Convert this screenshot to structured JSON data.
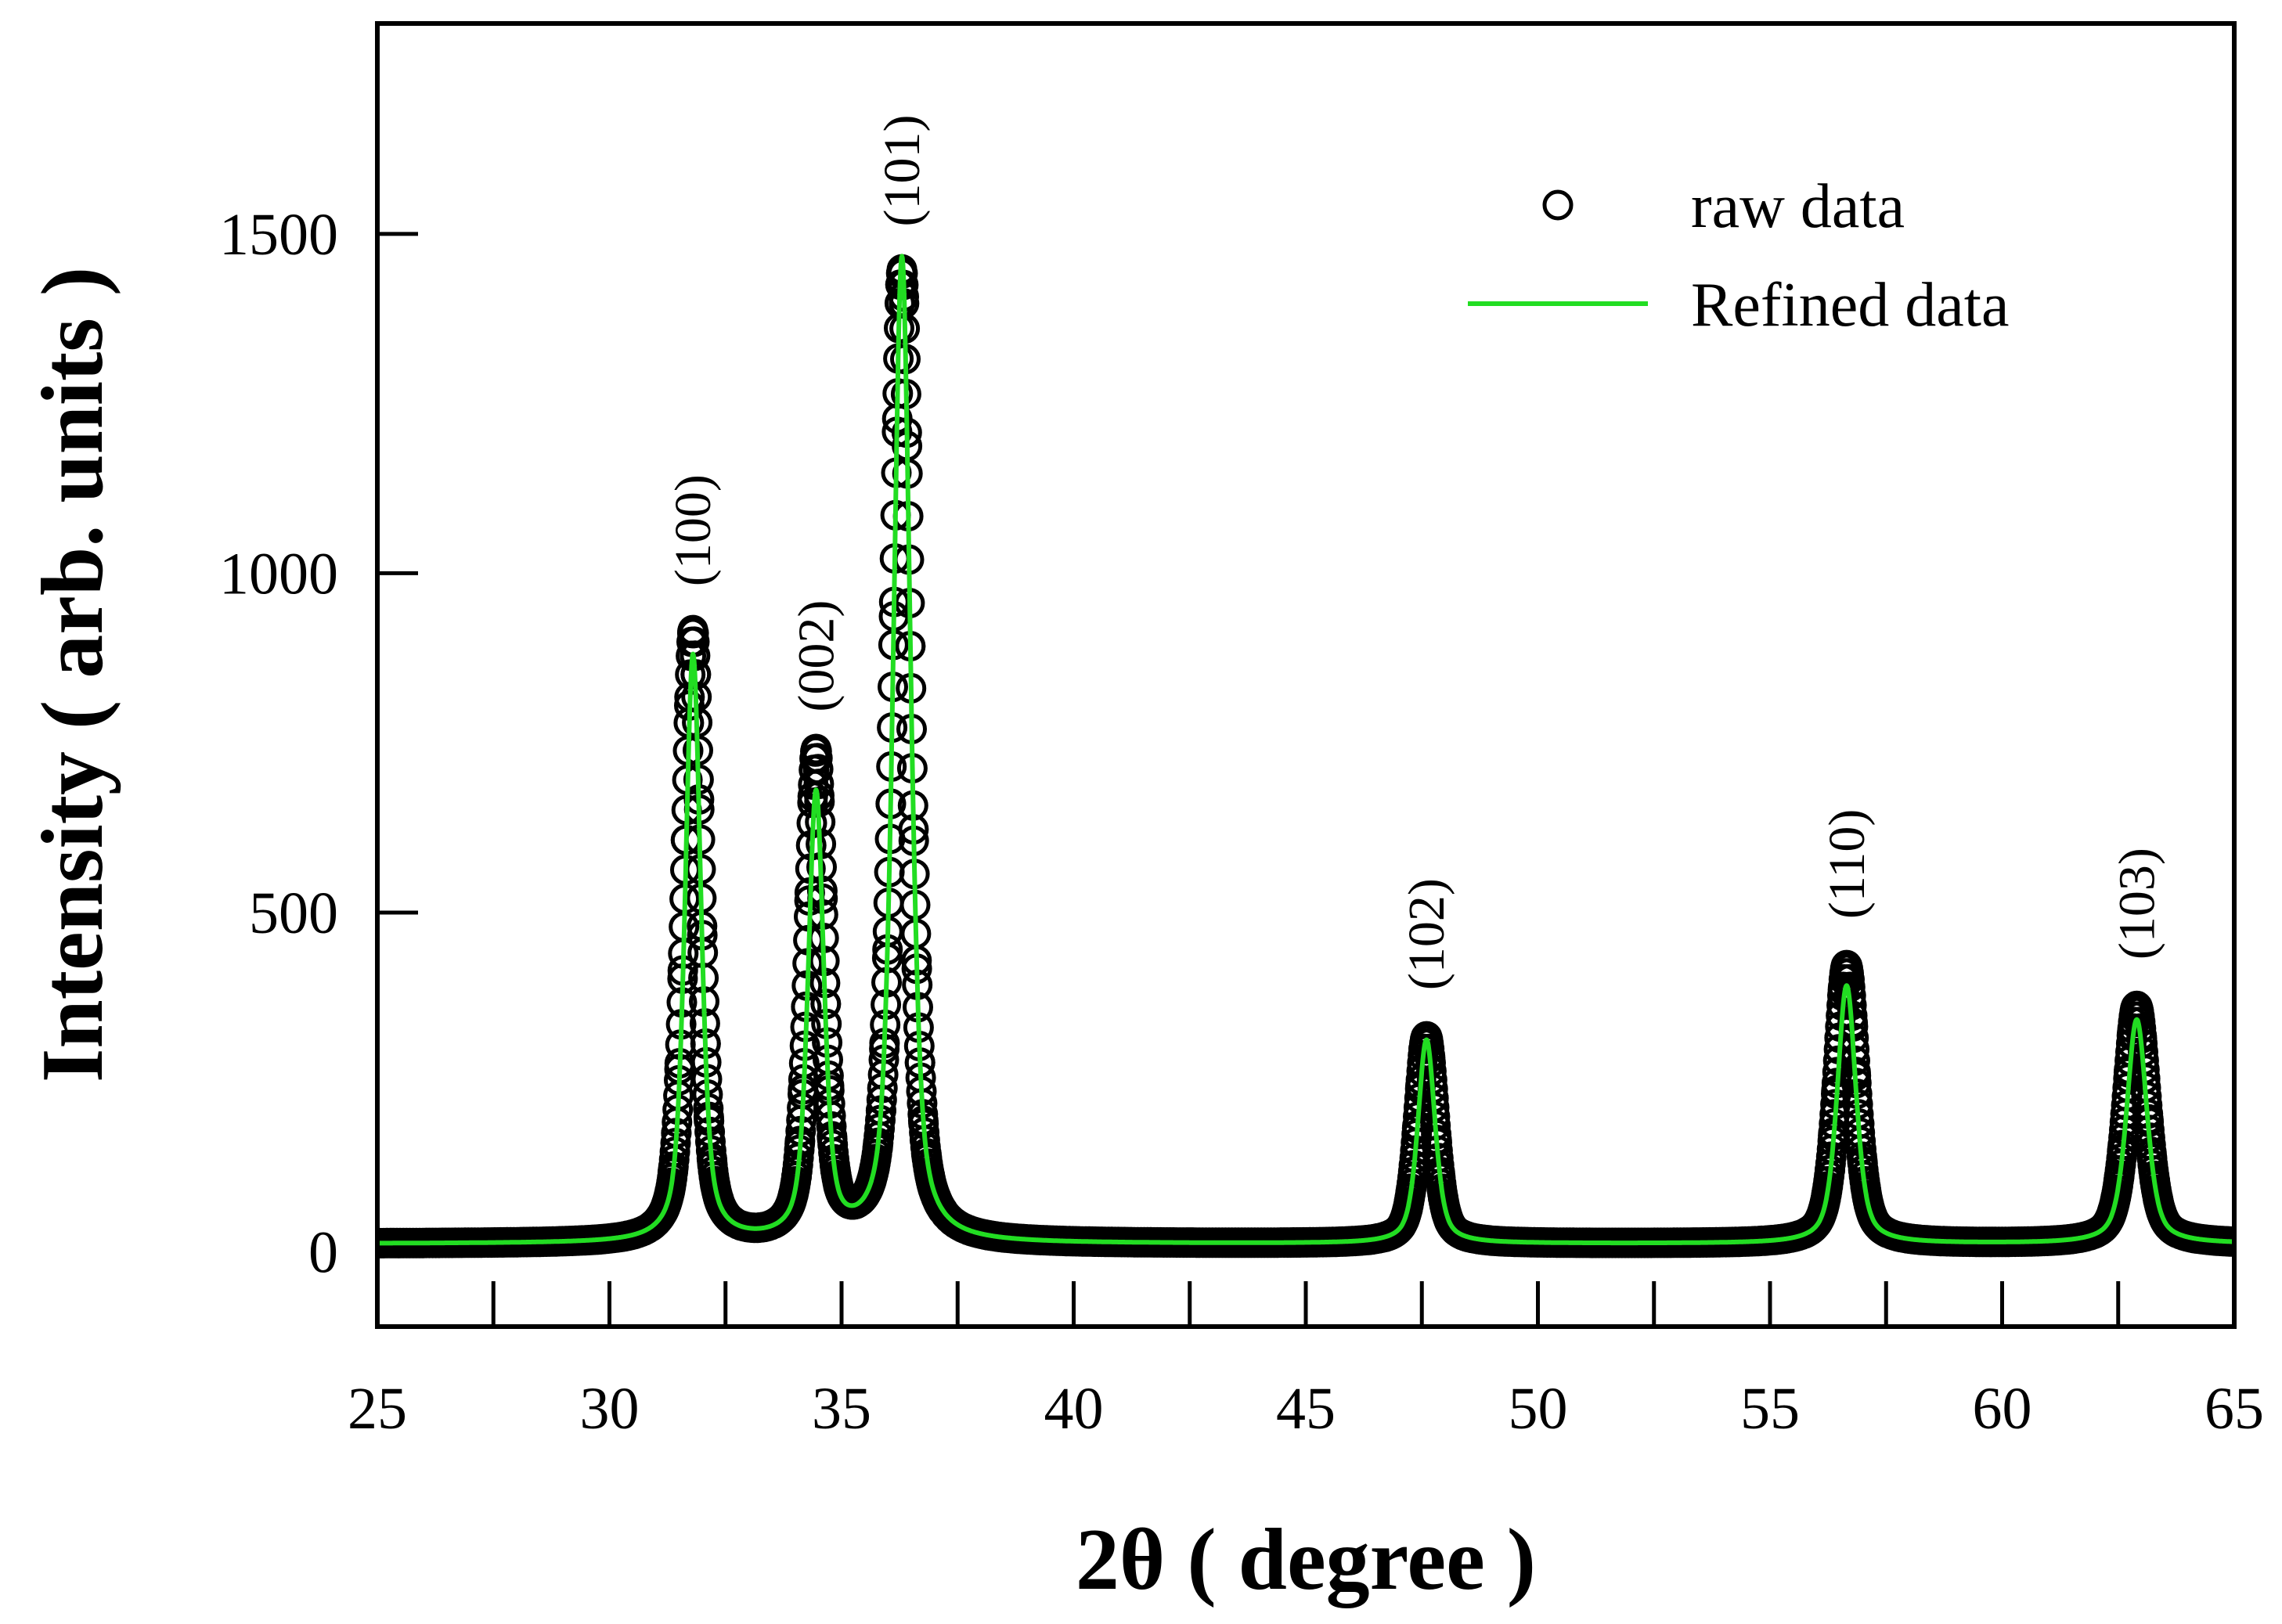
{
  "chart_data": {
    "type": "scatter",
    "xlabel": "2θ ( degree )",
    "ylabel": "Intensity ( arb. units )",
    "xlim": [
      25,
      65
    ],
    "ylim": [
      -110,
      1810
    ],
    "x_ticks": [
      25,
      30,
      35,
      40,
      45,
      50,
      55,
      60,
      65
    ],
    "x_tick_labels": [
      "25",
      "30",
      "35",
      "40",
      "45",
      "50",
      "55",
      "60",
      "65"
    ],
    "y_ticks": [
      0,
      500,
      1000,
      1500
    ],
    "y_tick_labels": [
      "0",
      "500",
      "1000",
      "1500"
    ],
    "baseline": 12,
    "peaks": [
      {
        "label": "(100)",
        "position": 31.8,
        "raw_height": 900,
        "refined_height": 865,
        "width": 0.2
      },
      {
        "label": "(002)",
        "position": 34.45,
        "raw_height": 715,
        "refined_height": 655,
        "width": 0.2
      },
      {
        "label": "(101)",
        "position": 36.3,
        "raw_height": 1430,
        "refined_height": 1450,
        "width": 0.22
      },
      {
        "label": "(102)",
        "position": 47.6,
        "raw_height": 305,
        "refined_height": 300,
        "width": 0.22
      },
      {
        "label": "(110)",
        "position": 56.65,
        "raw_height": 410,
        "refined_height": 380,
        "width": 0.24
      },
      {
        "label": "(103)",
        "position": 62.9,
        "raw_height": 350,
        "refined_height": 330,
        "width": 0.26
      }
    ],
    "series": [
      {
        "name": "raw data",
        "marker": "open-circle",
        "color": "#000000"
      },
      {
        "name": "Refined data",
        "marker": "line",
        "color": "#22dd22"
      }
    ],
    "legend_position": "top-right"
  }
}
